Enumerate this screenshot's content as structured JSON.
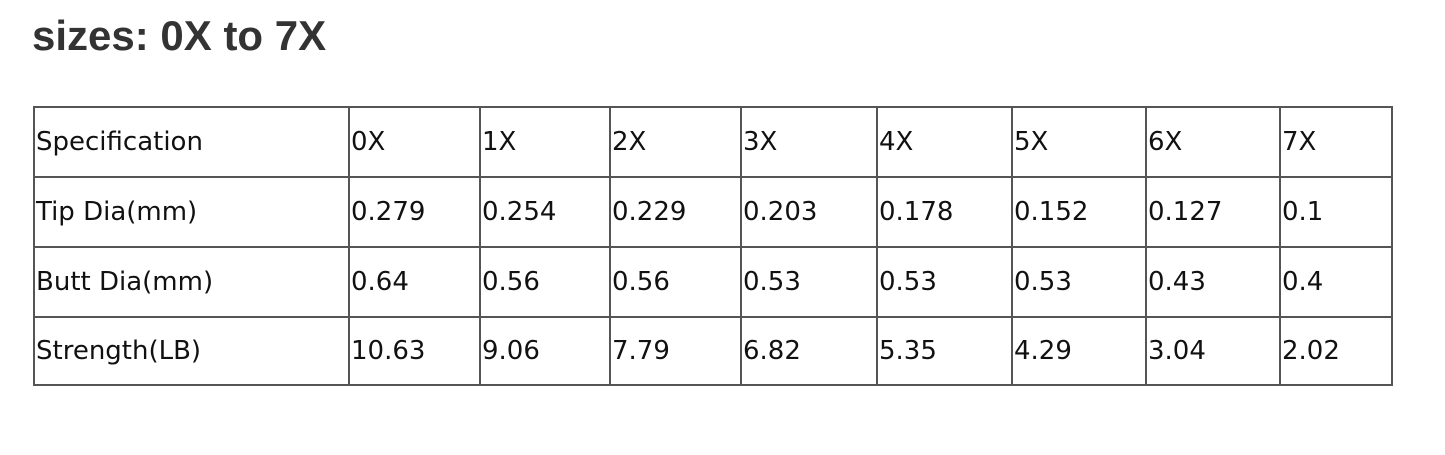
{
  "title": "sizes: 0X to 7X",
  "table": {
    "rows": [
      [
        "Specification",
        "0X",
        "1X",
        "2X",
        "3X",
        "4X",
        "5X",
        "6X",
        "7X"
      ],
      [
        "Tip Dia(mm)",
        "0.279",
        "0.254",
        "0.229",
        "0.203",
        "0.178",
        "0.152",
        "0.127",
        "0.1"
      ],
      [
        "Butt Dia(mm)",
        "0.64",
        "0.56",
        "0.56",
        "0.53",
        "0.53",
        "0.53",
        "0.43",
        "0.4"
      ],
      [
        "Strength(LB)",
        "10.63",
        "9.06",
        "7.79",
        "6.82",
        "5.35",
        "4.29",
        "3.04",
        "2.02"
      ]
    ]
  }
}
